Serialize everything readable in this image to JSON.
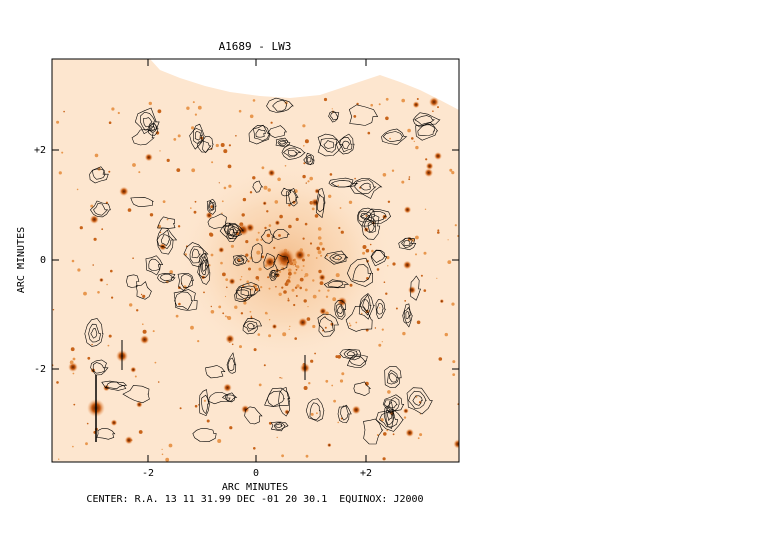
{
  "figure": {
    "title": "A1689 - LW3",
    "x_axis_label": "ARC MINUTES",
    "y_axis_label": "ARC MINUTES",
    "center_caption": "CENTER: R.A. 13 11 31.99 DEC -01 20 30.1  EQUINOX: J2000",
    "x_ticks": [
      "-2",
      "0",
      "+2"
    ],
    "y_ticks": [
      "+2",
      "0",
      "-2"
    ],
    "background_color": "#fde6cf",
    "source_color": "#e07820",
    "contour_color": "#000000"
  }
}
